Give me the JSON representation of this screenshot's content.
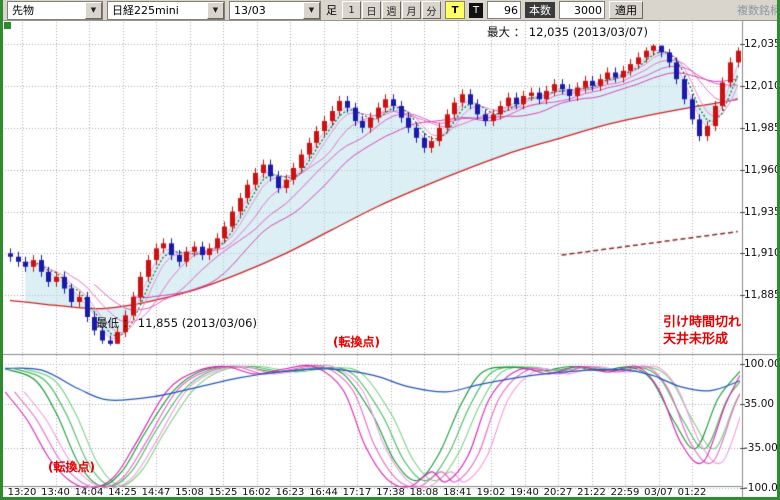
{
  "toolbar": {
    "instrument_type": "先物",
    "symbol": "日経225mini",
    "contract_month": "13/03",
    "bar_label": "足",
    "timeframe_buttons": [
      "1",
      "日",
      "週",
      "月",
      "分"
    ],
    "tick_button": "T",
    "tick_label": "T",
    "tick_value": "96",
    "bars_button": "本数",
    "bars_value": "3000",
    "apply_button": "適用",
    "multi_symbol": "複数銘柄"
  },
  "main_chart": {
    "max_annotation": "最大 ： 12,035 (2013/03/07)",
    "min_annotation": "最低 ： 11,855 (2013/03/06)",
    "note_line1": "引け時間切れ",
    "note_line2": "天井未形成",
    "turning_point_upper": "(転換点)",
    "y_ticks": [
      "12,035",
      "12,010",
      "11,985",
      "11,960",
      "11,935",
      "11,910",
      "11,885"
    ]
  },
  "oscillator": {
    "turning_point_lower": "(転換点)",
    "y_ticks": [
      "100.00",
      "35.00",
      "-35.00",
      "-100.00"
    ]
  },
  "time_axis": [
    "13:20",
    "13:40",
    "14:04",
    "14:25",
    "14:47",
    "15:08",
    "15:25",
    "16:02",
    "16:23",
    "16:44",
    "17:17",
    "17:38",
    "18:08",
    "18:41",
    "19:02",
    "19:40",
    "20:27",
    "21:22",
    "22:59",
    "03/07",
    "01:22"
  ],
  "colors": {
    "up": "#cc1111",
    "down": "#1a1aaa",
    "ribbon": [
      "#f2a3e0",
      "#ec8bd5",
      "#e673ca",
      "#df5bbf",
      "#d943b4"
    ],
    "green_ma": "#1a7a3a",
    "red_ma": "#cc2222",
    "dark_red_ma": "#8b2a2a",
    "cloud": "rgba(183,224,236,0.5)",
    "osc_blue": "#2255bb",
    "osc_green": [
      "#119933",
      "#45b95c",
      "#7ccf85"
    ],
    "osc_magenta": [
      "#d91fb4",
      "#e764cb",
      "#f29bdd"
    ],
    "annotation_red": "#e60000",
    "frame_green": "#2e8b2e"
  },
  "chart_data": {
    "type": "candlestick+oscillator",
    "bar_count": 96,
    "max": {
      "value": 12035,
      "date": "2013/03/07"
    },
    "min": {
      "value": 11855,
      "date": "2013/03/06"
    },
    "price_gridlines": [
      12035,
      12010,
      11985,
      11960,
      11935,
      11910,
      11885
    ],
    "price_range": [
      11851,
      12048
    ],
    "candles": [
      [
        11910,
        11913,
        11905,
        11908
      ],
      [
        11908,
        11911,
        11902,
        11905
      ],
      [
        11905,
        11908,
        11899,
        11902
      ],
      [
        11902,
        11909,
        11899,
        11906
      ],
      [
        11906,
        11909,
        11896,
        11899
      ],
      [
        11899,
        11902,
        11890,
        11893
      ],
      [
        11893,
        11899,
        11890,
        11896
      ],
      [
        11896,
        11899,
        11886,
        11889
      ],
      [
        11889,
        11892,
        11878,
        11881
      ],
      [
        11881,
        11887,
        11878,
        11884
      ],
      [
        11884,
        11887,
        11869,
        11872
      ],
      [
        11872,
        11875,
        11861,
        11864
      ],
      [
        11864,
        11867,
        11856,
        11858
      ],
      [
        11858,
        11861,
        11855,
        11856
      ],
      [
        11856,
        11866,
        11856,
        11863
      ],
      [
        11863,
        11876,
        11860,
        11873
      ],
      [
        11873,
        11887,
        11870,
        11884
      ],
      [
        11884,
        11899,
        11881,
        11896
      ],
      [
        11896,
        11909,
        11893,
        11906
      ],
      [
        11906,
        11916,
        11903,
        11913
      ],
      [
        11913,
        11919,
        11910,
        11916
      ],
      [
        11916,
        11919,
        11906,
        11909
      ],
      [
        11909,
        11912,
        11902,
        11905
      ],
      [
        11905,
        11914,
        11902,
        11911
      ],
      [
        11911,
        11917,
        11908,
        11914
      ],
      [
        11914,
        11917,
        11906,
        11909
      ],
      [
        11909,
        11916,
        11906,
        11913
      ],
      [
        11913,
        11922,
        11910,
        11919
      ],
      [
        11919,
        11929,
        11916,
        11926
      ],
      [
        11926,
        11938,
        11923,
        11935
      ],
      [
        11935,
        11946,
        11932,
        11943
      ],
      [
        11943,
        11954,
        11940,
        11951
      ],
      [
        11951,
        11961,
        11948,
        11958
      ],
      [
        11958,
        11966,
        11955,
        11963
      ],
      [
        11963,
        11966,
        11953,
        11956
      ],
      [
        11956,
        11959,
        11946,
        11949
      ],
      [
        11949,
        11957,
        11946,
        11954
      ],
      [
        11954,
        11964,
        11951,
        11961
      ],
      [
        11961,
        11972,
        11958,
        11969
      ],
      [
        11969,
        11979,
        11966,
        11976
      ],
      [
        11976,
        11986,
        11973,
        11983
      ],
      [
        11983,
        11992,
        11980,
        11989
      ],
      [
        11989,
        11998,
        11986,
        11995
      ],
      [
        11995,
        12004,
        11992,
        12001
      ],
      [
        12001,
        12004,
        11994,
        11997
      ],
      [
        11997,
        12000,
        11986,
        11989
      ],
      [
        11989,
        11992,
        11982,
        11985
      ],
      [
        11985,
        11994,
        11982,
        11991
      ],
      [
        11991,
        12000,
        11988,
        11997
      ],
      [
        11997,
        12005,
        11994,
        12002
      ],
      [
        12002,
        12005,
        11995,
        11998
      ],
      [
        11998,
        12001,
        11988,
        11991
      ],
      [
        11991,
        11994,
        11982,
        11985
      ],
      [
        11985,
        11988,
        11976,
        11979
      ],
      [
        11979,
        11982,
        11970,
        11973
      ],
      [
        11973,
        11980,
        11970,
        11977
      ],
      [
        11977,
        11988,
        11974,
        11985
      ],
      [
        11985,
        11996,
        11982,
        11993
      ],
      [
        11993,
        12003,
        11990,
        12000
      ],
      [
        12000,
        12008,
        11997,
        12005
      ],
      [
        12005,
        12008,
        11996,
        11999
      ],
      [
        11999,
        12002,
        11990,
        11993
      ],
      [
        11993,
        11996,
        11986,
        11989
      ],
      [
        11989,
        11996,
        11986,
        11993
      ],
      [
        11993,
        12001,
        11990,
        11998
      ],
      [
        11998,
        12006,
        11995,
        12003
      ],
      [
        12003,
        12006,
        11996,
        11999
      ],
      [
        11999,
        12007,
        11996,
        12004
      ],
      [
        12004,
        12009,
        12001,
        12006
      ],
      [
        12006,
        12009,
        11999,
        12002
      ],
      [
        12002,
        12010,
        11999,
        12007
      ],
      [
        12007,
        12014,
        12004,
        12011
      ],
      [
        12011,
        12014,
        12005,
        12008
      ],
      [
        12008,
        12011,
        12001,
        12004
      ],
      [
        12004,
        12012,
        12001,
        12009
      ],
      [
        12009,
        12016,
        12006,
        12013
      ],
      [
        12013,
        12016,
        12007,
        12010
      ],
      [
        12010,
        12017,
        12007,
        12014
      ],
      [
        12014,
        12021,
        12011,
        12018
      ],
      [
        12018,
        12021,
        12012,
        12015
      ],
      [
        12015,
        12022,
        12012,
        12019
      ],
      [
        12019,
        12026,
        12016,
        12023
      ],
      [
        12023,
        12030,
        12020,
        12027
      ],
      [
        12027,
        12033,
        12024,
        12031
      ],
      [
        12031,
        12035,
        12028,
        12034
      ],
      [
        12034,
        12034,
        12027,
        12030
      ],
      [
        12030,
        12032,
        12021,
        12024
      ],
      [
        12024,
        12027,
        12011,
        12014
      ],
      [
        12014,
        12016,
        11999,
        12002
      ],
      [
        12002,
        12005,
        11987,
        11990
      ],
      [
        11990,
        11993,
        11977,
        11980
      ],
      [
        11980,
        11989,
        11977,
        11986
      ],
      [
        11986,
        12001,
        11983,
        11998
      ],
      [
        11998,
        12015,
        11995,
        12012
      ],
      [
        12012,
        12027,
        12009,
        12024
      ],
      [
        12024,
        12033,
        12021,
        12031
      ]
    ],
    "ma_ribbon_periods": [
      3,
      5,
      8,
      12,
      17
    ],
    "ma_green_period": 4,
    "red_ma": [
      [
        0,
        11882
      ],
      [
        6,
        11879
      ],
      [
        12,
        11877
      ],
      [
        18,
        11881
      ],
      [
        24,
        11888
      ],
      [
        30,
        11898
      ],
      [
        36,
        11910
      ],
      [
        42,
        11924
      ],
      [
        48,
        11938
      ],
      [
        54,
        11950
      ],
      [
        60,
        11961
      ],
      [
        66,
        11971
      ],
      [
        72,
        11979
      ],
      [
        78,
        11987
      ],
      [
        84,
        11993
      ],
      [
        90,
        11998
      ],
      [
        95,
        12002
      ]
    ],
    "dark_red_ma": [
      [
        72,
        11909
      ],
      [
        95,
        11923
      ]
    ],
    "oscillator": {
      "range": [
        -100,
        100
      ],
      "gridlines": [
        100,
        35,
        -35,
        -100
      ],
      "fan_offsets": [
        0,
        0.013,
        0.026
      ],
      "series": {
        "blue": [
          [
            0,
            93
          ],
          [
            0.05,
            90
          ],
          [
            0.1,
            60
          ],
          [
            0.14,
            42
          ],
          [
            0.2,
            47
          ],
          [
            0.26,
            62
          ],
          [
            0.32,
            78
          ],
          [
            0.38,
            88
          ],
          [
            0.44,
            92
          ],
          [
            0.5,
            82
          ],
          [
            0.55,
            63
          ],
          [
            0.6,
            55
          ],
          [
            0.65,
            68
          ],
          [
            0.72,
            82
          ],
          [
            0.78,
            89
          ],
          [
            0.84,
            91
          ],
          [
            0.88,
            82
          ],
          [
            0.92,
            63
          ],
          [
            0.96,
            57
          ],
          [
            1,
            73
          ]
        ],
        "green": [
          [
            0,
            92
          ],
          [
            0.04,
            75
          ],
          [
            0.07,
            20
          ],
          [
            0.1,
            -60
          ],
          [
            0.13,
            -96
          ],
          [
            0.16,
            -72
          ],
          [
            0.19,
            -12
          ],
          [
            0.23,
            58
          ],
          [
            0.27,
            90
          ],
          [
            0.32,
            96
          ],
          [
            0.37,
            87
          ],
          [
            0.42,
            94
          ],
          [
            0.46,
            84
          ],
          [
            0.5,
            18
          ],
          [
            0.53,
            -56
          ],
          [
            0.56,
            -88
          ],
          [
            0.59,
            -46
          ],
          [
            0.62,
            34
          ],
          [
            0.65,
            87
          ],
          [
            0.69,
            95
          ],
          [
            0.73,
            89
          ],
          [
            0.77,
            96
          ],
          [
            0.81,
            89
          ],
          [
            0.85,
            95
          ],
          [
            0.88,
            74
          ],
          [
            0.91,
            8
          ],
          [
            0.94,
            -36
          ],
          [
            0.97,
            44
          ],
          [
            1,
            88
          ]
        ],
        "magenta": [
          [
            0,
            55
          ],
          [
            0.03,
            10
          ],
          [
            0.06,
            -52
          ],
          [
            0.09,
            -90
          ],
          [
            0.12,
            -100
          ],
          [
            0.15,
            -80
          ],
          [
            0.18,
            -24
          ],
          [
            0.22,
            56
          ],
          [
            0.26,
            88
          ],
          [
            0.3,
            96
          ],
          [
            0.34,
            84
          ],
          [
            0.38,
            92
          ],
          [
            0.42,
            96
          ],
          [
            0.46,
            58
          ],
          [
            0.49,
            -32
          ],
          [
            0.52,
            -86
          ],
          [
            0.55,
            -98
          ],
          [
            0.58,
            -74
          ],
          [
            0.6,
            -90
          ],
          [
            0.63,
            -48
          ],
          [
            0.66,
            46
          ],
          [
            0.7,
            91
          ],
          [
            0.74,
            84
          ],
          [
            0.78,
            96
          ],
          [
            0.82,
            87
          ],
          [
            0.86,
            96
          ],
          [
            0.89,
            58
          ],
          [
            0.92,
            -28
          ],
          [
            0.95,
            -58
          ],
          [
            0.98,
            34
          ],
          [
            1,
            82
          ]
        ]
      }
    }
  }
}
